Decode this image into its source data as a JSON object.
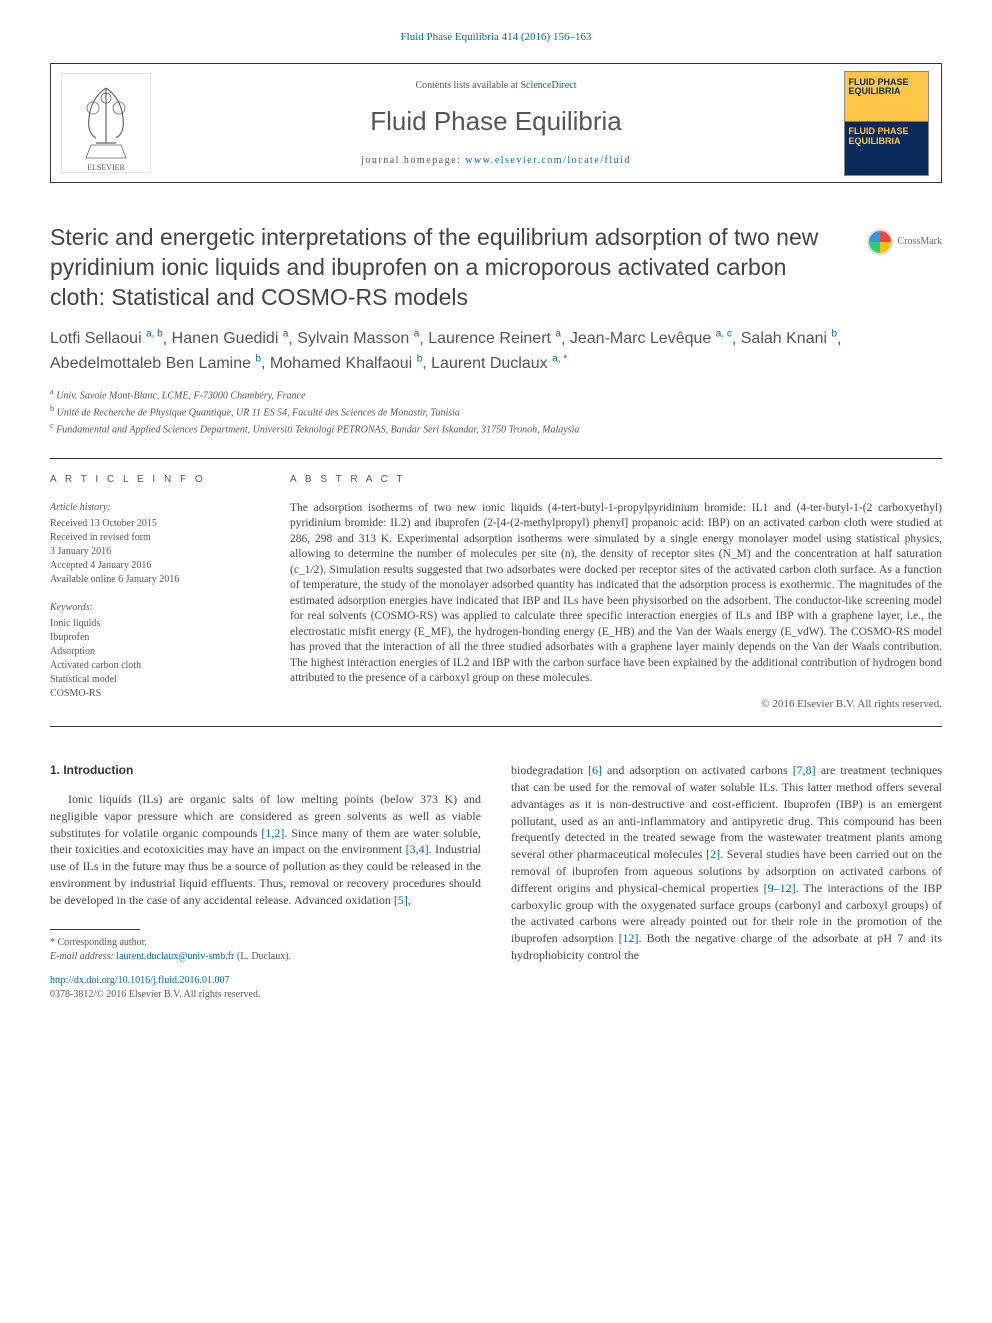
{
  "top_link": {
    "text": "Fluid Phase Equilibria 414 (2016) 156–163"
  },
  "header": {
    "contents_prefix": "Contents lists available at ",
    "contents_link": "ScienceDirect",
    "journal_name": "Fluid Phase Equilibria",
    "homepage_prefix": "journal homepage: ",
    "homepage_link": "www.elsevier.com/locate/fluid",
    "cover_top": "FLUID PHASE EQUILIBRIA",
    "cover_bot": "FLUID PHASE EQUILIBRIA"
  },
  "title": "Steric and energetic interpretations of the equilibrium adsorption of two new pyridinium ionic liquids and ibuprofen on a microporous activated carbon cloth: Statistical and COSMO-RS models",
  "crossmark": "CrossMark",
  "authors": [
    {
      "name": "Lotfi Sellaoui",
      "sup": "a, b"
    },
    {
      "name": "Hanen Guedidi",
      "sup": "a"
    },
    {
      "name": "Sylvain Masson",
      "sup": "a"
    },
    {
      "name": "Laurence Reinert",
      "sup": "a"
    },
    {
      "name": "Jean-Marc Levêque",
      "sup": "a, c"
    },
    {
      "name": "Salah Knani",
      "sup": "b"
    },
    {
      "name": "Abedelmottaleb Ben Lamine",
      "sup": "b"
    },
    {
      "name": "Mohamed Khalfaoui",
      "sup": "b"
    },
    {
      "name": "Laurent Duclaux",
      "sup": "a, *"
    }
  ],
  "affiliations": [
    {
      "sup": "a",
      "text": "Univ. Savoie Mont-Blanc, LCME, F-73000 Chambéry, France"
    },
    {
      "sup": "b",
      "text": "Unité de Recherche de Physique Quantique, UR 11 ES 54, Faculté des Sciences de Monastir, Tunisia"
    },
    {
      "sup": "c",
      "text": "Fundamental and Applied Sciences Department, Universiti Teknologi PETRONAS, Bandar Seri Iskandar, 31750 Tronoh, Malaysia"
    }
  ],
  "article_info": {
    "label": "A R T I C L E   I N F O",
    "history_head": "Article history:",
    "history": [
      "Received 13 October 2015",
      "Received in revised form",
      "3 January 2016",
      "Accepted 4 January 2016",
      "Available online 6 January 2016"
    ],
    "keywords_head": "Keywords:",
    "keywords": [
      "Ionic liquids",
      "Ibuprofen",
      "Adsorption",
      "Activated carbon cloth",
      "Statistical model",
      "COSMO-RS"
    ]
  },
  "abstract": {
    "label": "A B S T R A C T",
    "text": "The adsorption isotherms of two new ionic liquids (4-tert-butyl-1-propylpyridinium bromide: IL1 and (4-ter-butyl-1-(2 carboxyethyl) pyridinium bromide: IL2) and ibuprofen (2-[4-(2-methylpropyl) phenyl] propanoic acid: IBP) on an activated carbon cloth were studied at 286, 298 and 313 K. Experimental adsorption isotherms were simulated by a single energy monolayer model using statistical physics, allowing to determine the number of molecules per site (n), the density of receptor sites (N_M) and the concentration at half saturation (c_1/2). Simulation results suggested that two adsorbates were docked per receptor sites of the activated carbon cloth surface. As a function of temperature, the study of the monolayer adsorbed quantity has indicated that the adsorption process is exothermic. The magnitudes of the estimated adsorption energies have indicated that IBP and ILs have been physisorbed on the adsorbent. The conductor-like screening model for real solvents (COSMO-RS) was applied to calculate three specific interaction energies of ILs and IBP with a graphene layer, i.e., the electrostatic misfit energy (E_MF), the hydrogen-bonding energy (E_HB) and the Van der Waals energy (E_vdW). The COSMO-RS model has proved that the interaction of all the three studied adsorbates with a graphene layer mainly depends on the Van der Waals contribution. The highest interaction energies of IL2 and IBP with the carbon surface have been explained by the additional contribution of hydrogen bond attributed to the presence of a carboxyl group on these molecules.",
    "copyright": "© 2016 Elsevier B.V. All rights reserved."
  },
  "intro": {
    "heading": "1. Introduction",
    "left": "Ionic liquids (ILs) are organic salts of low melting points (below 373 K) and negligible vapor pressure which are considered as green solvents as well as viable substitutes for volatile organic compounds [1,2]. Since many of them are water soluble, their toxicities and ecotoxicities may have an impact on the environment [3,4]. Industrial use of ILs in the future may thus be a source of pollution as they could be released in the environment by industrial liquid effluents. Thus, removal or recovery procedures should be developed in the case of any accidental release. Advanced oxidation [5],",
    "right": "biodegradation [6] and adsorption on activated carbons [7,8] are treatment techniques that can be used for the removal of water soluble ILs. This latter method offers several advantages as it is non-destructive and cost-efficient. Ibuprofen (IBP) is an emergent pollutant, used as an anti-inflammatory and antipyretic drug. This compound has been frequently detected in the treated sewage from the wastewater treatment plants among several other pharmaceutical molecules [2]. Several studies have been carried out on the removal of ibuprofen from aqueous solutions by adsorption on activated carbons of different origins and physical-chemical properties [9–12]. The interactions of the IBP carboxylic group with the oxygenated surface groups (carbonyl and carboxyl groups) of the activated carbons were already pointed out for their role in the promotion of the ibuprofen adsorption [12]. Both the negative charge of the adsorbate at pH 7 and its hydrophobicity control the"
  },
  "footnote": {
    "corr": "* Corresponding author.",
    "email_label": "E-mail address: ",
    "email": "laurent.duclaux@univ-smb.fr",
    "email_tail": " (L. Duclaux)."
  },
  "doi": {
    "link": "http://dx.doi.org/10.1016/j.fluid.2016.01.007",
    "copy": "0378-3812/© 2016 Elsevier B.V. All rights reserved."
  },
  "colors": {
    "link": "#0066aa",
    "text": "#444444",
    "border": "#333333",
    "cover_gold": "#ffc64a",
    "cover_navy": "#0b2a5c"
  }
}
